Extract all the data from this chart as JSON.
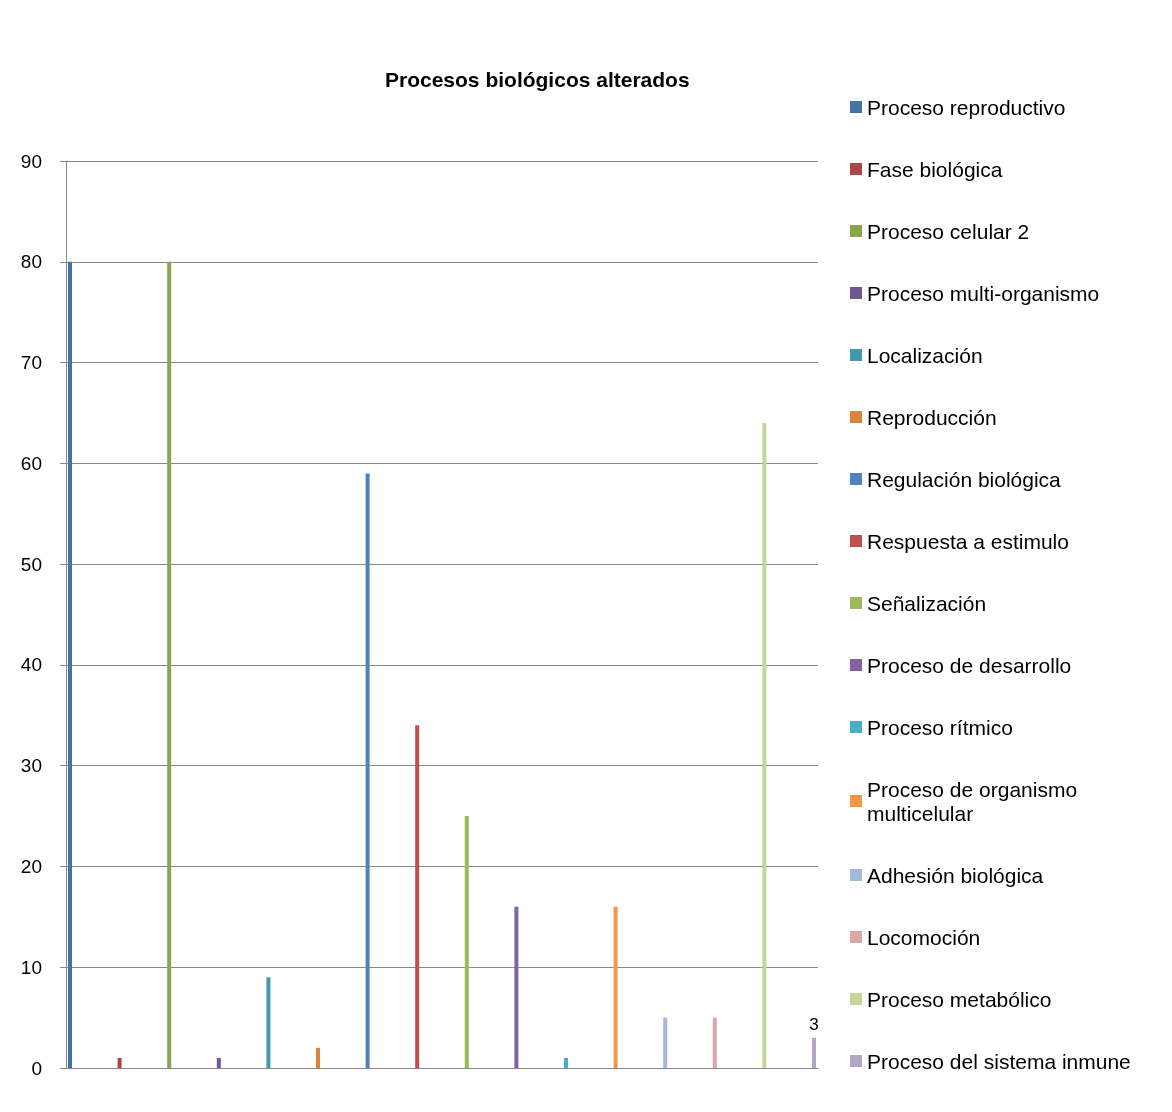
{
  "chart_data": {
    "type": "bar",
    "title": "Procesos biológicos alterados",
    "categories": [
      null
    ],
    "series": [
      {
        "name": "Proceso reproductivo",
        "color": "#4572a7",
        "values": [
          80
        ]
      },
      {
        "name": "Fase biológica",
        "color": "#aa4643",
        "values": [
          1
        ]
      },
      {
        "name": "Proceso celular 2",
        "color": "#89a54e",
        "values": [
          80
        ]
      },
      {
        "name": "Proceso multi-organismo",
        "color": "#71588f",
        "values": [
          1
        ]
      },
      {
        "name": "Localización",
        "color": "#4198af",
        "values": [
          9
        ]
      },
      {
        "name": "Reproducción",
        "color": "#db843d",
        "values": [
          2
        ]
      },
      {
        "name": "Regulación biológica",
        "color": "#4f81bd",
        "values": [
          59
        ]
      },
      {
        "name": "Respuesta a estimulo",
        "color": "#c0504d",
        "values": [
          34
        ]
      },
      {
        "name": "Señalización",
        "color": "#9bbb59",
        "values": [
          25
        ]
      },
      {
        "name": "Proceso de desarrollo",
        "color": "#8064a2",
        "values": [
          16
        ]
      },
      {
        "name": "Proceso rítmico",
        "color": "#4bacc6",
        "values": [
          1
        ]
      },
      {
        "name": "Proceso de organismo multicelular",
        "color": "#f79646",
        "values": [
          16
        ]
      },
      {
        "name": "Adhesión biológica",
        "color": "#a5b8d8",
        "values": [
          5
        ]
      },
      {
        "name": "Locomoción",
        "color": "#dba6a5",
        "values": [
          5
        ]
      },
      {
        "name": "Proceso metabólico",
        "color": "#c3d69b",
        "values": [
          64
        ]
      },
      {
        "name": "Proceso del sistema inmune",
        "color": "#b2a5c5",
        "values": [
          3
        ],
        "value_labels": [
          "3"
        ]
      }
    ],
    "ylim": [
      0,
      90
    ],
    "yticks": [
      0,
      10,
      20,
      30,
      40,
      50,
      60,
      70,
      80,
      90
    ],
    "grid": "y",
    "legend": "right"
  }
}
